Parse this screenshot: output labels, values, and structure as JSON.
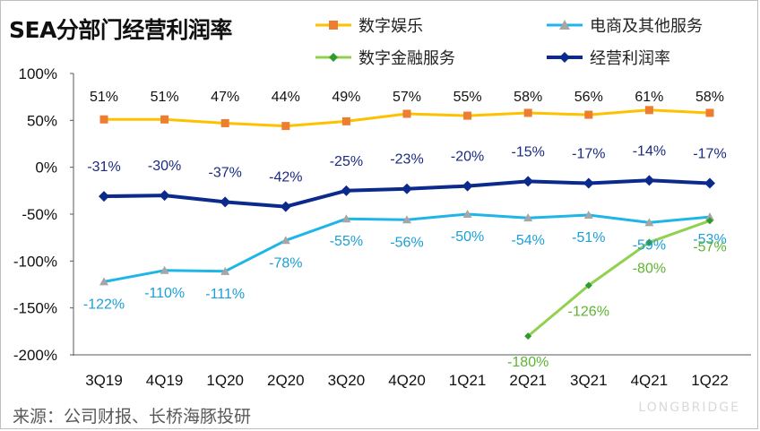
{
  "title": "SEA分部门经营利润率",
  "source": "来源：公司财报、长桥海豚投研",
  "watermark": "LONGBRIDGE",
  "colors": {
    "entertainment": "#ffc000",
    "ecommerce": "#1fb5e8",
    "fintech": "#92d050",
    "operating": "#0b2a8c",
    "entertainment_label": "#111111",
    "ecommerce_label": "#1a9fd6",
    "fintech_label": "#5cb531",
    "operating_label": "#1a2a80"
  },
  "chart_data": {
    "type": "line",
    "title": "SEA分部门经营利润率",
    "categories": [
      "3Q19",
      "4Q19",
      "1Q20",
      "2Q20",
      "3Q20",
      "4Q20",
      "1Q21",
      "2Q21",
      "3Q21",
      "4Q21",
      "1Q22"
    ],
    "y_ticks": [
      "100%",
      "50%",
      "0%",
      "-50%",
      "-100%",
      "-150%",
      "-200%"
    ],
    "ylim": [
      -200,
      100
    ],
    "unit": "%",
    "series": [
      {
        "key": "entertainment",
        "name": "数字娱乐",
        "marker": "square",
        "values": [
          51,
          51,
          47,
          44,
          49,
          57,
          55,
          58,
          56,
          61,
          58
        ]
      },
      {
        "key": "ecommerce",
        "name": "电商及其他服务",
        "marker": "triangle",
        "values": [
          -122,
          -110,
          -111,
          -78,
          -55,
          -56,
          -50,
          -54,
          -51,
          -59,
          -53
        ]
      },
      {
        "key": "fintech",
        "name": "数字金融服务",
        "marker": "diamond",
        "values": [
          null,
          null,
          null,
          null,
          null,
          null,
          null,
          -180,
          -126,
          -80,
          -57
        ]
      },
      {
        "key": "operating",
        "name": "经营利润率",
        "marker": "diamond",
        "values": [
          -31,
          -30,
          -37,
          -42,
          -25,
          -23,
          -20,
          -15,
          -17,
          -14,
          -17
        ]
      }
    ]
  }
}
